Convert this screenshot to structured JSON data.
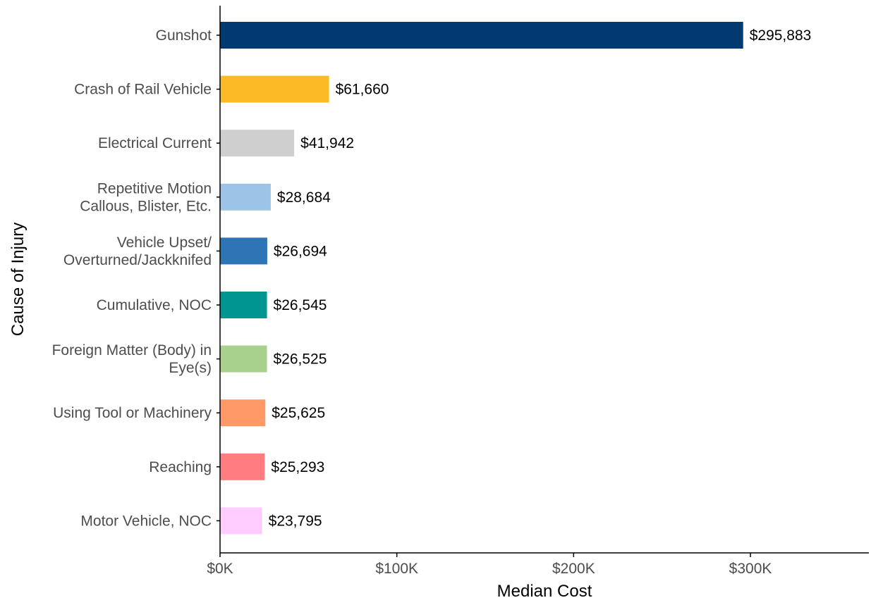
{
  "chart_data": {
    "type": "bar",
    "orientation": "horizontal",
    "xlabel": "Median Cost",
    "ylabel": "Cause of Injury",
    "xlim": [
      0,
      367000
    ],
    "xticks": [
      0,
      100000,
      200000,
      300000
    ],
    "xtick_labels": [
      "$0K",
      "$100K",
      "$200K",
      "$300K"
    ],
    "grid": false,
    "categories": [
      [
        "Gunshot"
      ],
      [
        "Crash of Rail Vehicle"
      ],
      [
        "Electrical Current"
      ],
      [
        "Repetitive Motion",
        "Callous, Blister, Etc."
      ],
      [
        "Vehicle Upset/",
        "Overturned/Jackknifed"
      ],
      [
        "Cumulative, NOC"
      ],
      [
        "Foreign Matter (Body) in",
        "Eye(s)"
      ],
      [
        "Using Tool or Machinery"
      ],
      [
        "Reaching"
      ],
      [
        "Motor Vehicle, NOC"
      ]
    ],
    "values": [
      295883,
      61660,
      41942,
      28684,
      26694,
      26545,
      26525,
      25625,
      25293,
      23795
    ],
    "value_labels": [
      "$295,883",
      "$61,660",
      "$41,942",
      "$28,684",
      "$26,694",
      "$26,545",
      "$26,525",
      "$25,625",
      "$25,293",
      "$23,795"
    ],
    "colors": [
      "#003A70",
      "#FBBA26",
      "#CFCFCF",
      "#9DC3E6",
      "#2E75B6",
      "#009591",
      "#A9D18E",
      "#FF9966",
      "#FF7C80",
      "#FFCCFF"
    ],
    "axis_color": "#000000",
    "text_color": "#4D4D4D",
    "label_color": "#000000"
  }
}
